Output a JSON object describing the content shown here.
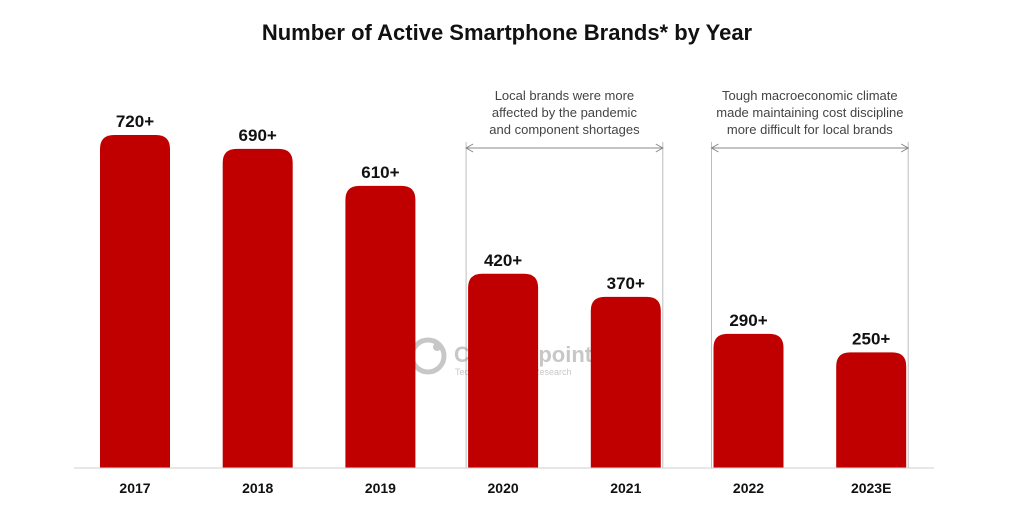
{
  "chart_data": {
    "type": "bar",
    "title": "Number of Active Smartphone Brands* by Year",
    "categories": [
      "2017",
      "2018",
      "2019",
      "2020",
      "2021",
      "2022",
      "2023E"
    ],
    "values": [
      720,
      690,
      610,
      420,
      370,
      290,
      250
    ],
    "value_labels": [
      "720+",
      "690+",
      "610+",
      "420+",
      "370+",
      "290+",
      "250+"
    ],
    "ylim": [
      0,
      800
    ],
    "xlabel": "",
    "ylabel": "",
    "grid": false,
    "bar_color": "#c00000",
    "annotations": [
      {
        "from_category": "2020",
        "to_category": "2021",
        "lines": [
          "Local brands were more",
          "affected by the pandemic",
          "and component shortages"
        ]
      },
      {
        "from_category": "2022",
        "to_category": "2023E",
        "lines": [
          "Tough macroeconomic climate",
          "made maintaining cost discipline",
          "more difficult for local brands"
        ]
      }
    ]
  },
  "watermark": {
    "brand": "Counterpoint",
    "tagline": "Technology Market Research"
  }
}
